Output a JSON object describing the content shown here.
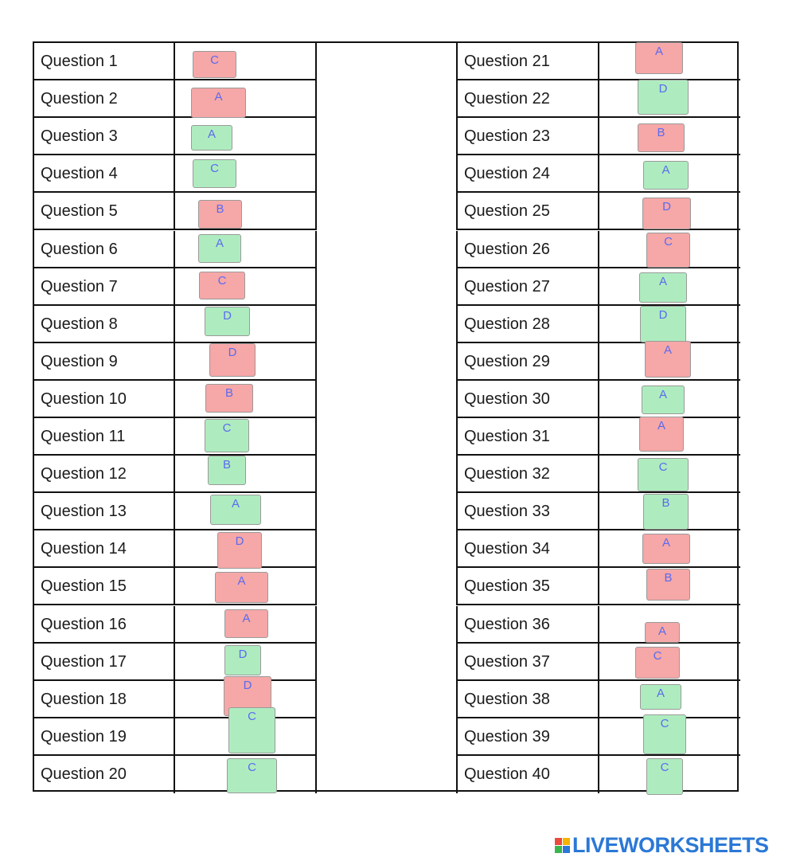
{
  "questions": [
    {
      "label": "Question 1",
      "answer": "C",
      "status": "red"
    },
    {
      "label": "Question 2",
      "answer": "A",
      "status": "red"
    },
    {
      "label": "Question 3",
      "answer": "A",
      "status": "green"
    },
    {
      "label": "Question 4",
      "answer": "C",
      "status": "green"
    },
    {
      "label": "Question 5",
      "answer": "B",
      "status": "red"
    },
    {
      "label": "Question 6",
      "answer": "A",
      "status": "green"
    },
    {
      "label": "Question 7",
      "answer": "C",
      "status": "red"
    },
    {
      "label": "Question 8",
      "answer": "D",
      "status": "green"
    },
    {
      "label": "Question 9",
      "answer": "D",
      "status": "red"
    },
    {
      "label": "Question 10",
      "answer": "B",
      "status": "red"
    },
    {
      "label": "Question 11",
      "answer": "C",
      "status": "green"
    },
    {
      "label": "Question 12",
      "answer": "B",
      "status": "green"
    },
    {
      "label": "Question 13",
      "answer": "A",
      "status": "green"
    },
    {
      "label": "Question 14",
      "answer": "D",
      "status": "red"
    },
    {
      "label": "Question 15",
      "answer": "A",
      "status": "red"
    },
    {
      "label": "Question 16",
      "answer": "A",
      "status": "red"
    },
    {
      "label": "Question 17",
      "answer": "D",
      "status": "green"
    },
    {
      "label": "Question 18",
      "answer": "D",
      "status": "red"
    },
    {
      "label": "Question 19",
      "answer": "C",
      "status": "green"
    },
    {
      "label": "Question 20",
      "answer": "C",
      "status": "green"
    },
    {
      "label": "Question 21",
      "answer": "A",
      "status": "red"
    },
    {
      "label": "Question 22",
      "answer": "D",
      "status": "green"
    },
    {
      "label": "Question 23",
      "answer": "B",
      "status": "red"
    },
    {
      "label": "Question 24",
      "answer": "A",
      "status": "green"
    },
    {
      "label": "Question 25",
      "answer": "D",
      "status": "red"
    },
    {
      "label": "Question 26",
      "answer": "C",
      "status": "red"
    },
    {
      "label": "Question 27",
      "answer": "A",
      "status": "green"
    },
    {
      "label": "Question 28",
      "answer": "D",
      "status": "green"
    },
    {
      "label": "Question 29",
      "answer": "A",
      "status": "red"
    },
    {
      "label": "Question 30",
      "answer": "A",
      "status": "green"
    },
    {
      "label": "Question 31",
      "answer": "A",
      "status": "red"
    },
    {
      "label": "Question 32",
      "answer": "C",
      "status": "green"
    },
    {
      "label": "Question 33",
      "answer": "B",
      "status": "green"
    },
    {
      "label": "Question 34",
      "answer": "A",
      "status": "red"
    },
    {
      "label": "Question 35",
      "answer": "B",
      "status": "red"
    },
    {
      "label": "Question 36",
      "answer": "A",
      "status": "red"
    },
    {
      "label": "Question 37",
      "answer": "C",
      "status": "red"
    },
    {
      "label": "Question 38",
      "answer": "A",
      "status": "green"
    },
    {
      "label": "Question 39",
      "answer": "C",
      "status": "green"
    },
    {
      "label": "Question 40",
      "answer": "C",
      "status": "green"
    }
  ],
  "colors": {
    "red": "#f6a7a7",
    "green": "#aeecbf",
    "answer_text": "#5a6bf0"
  },
  "footer": {
    "logo_text": "LIVEWORKSHEETS",
    "logo_icon": "liveworksheets-logo-icon"
  }
}
